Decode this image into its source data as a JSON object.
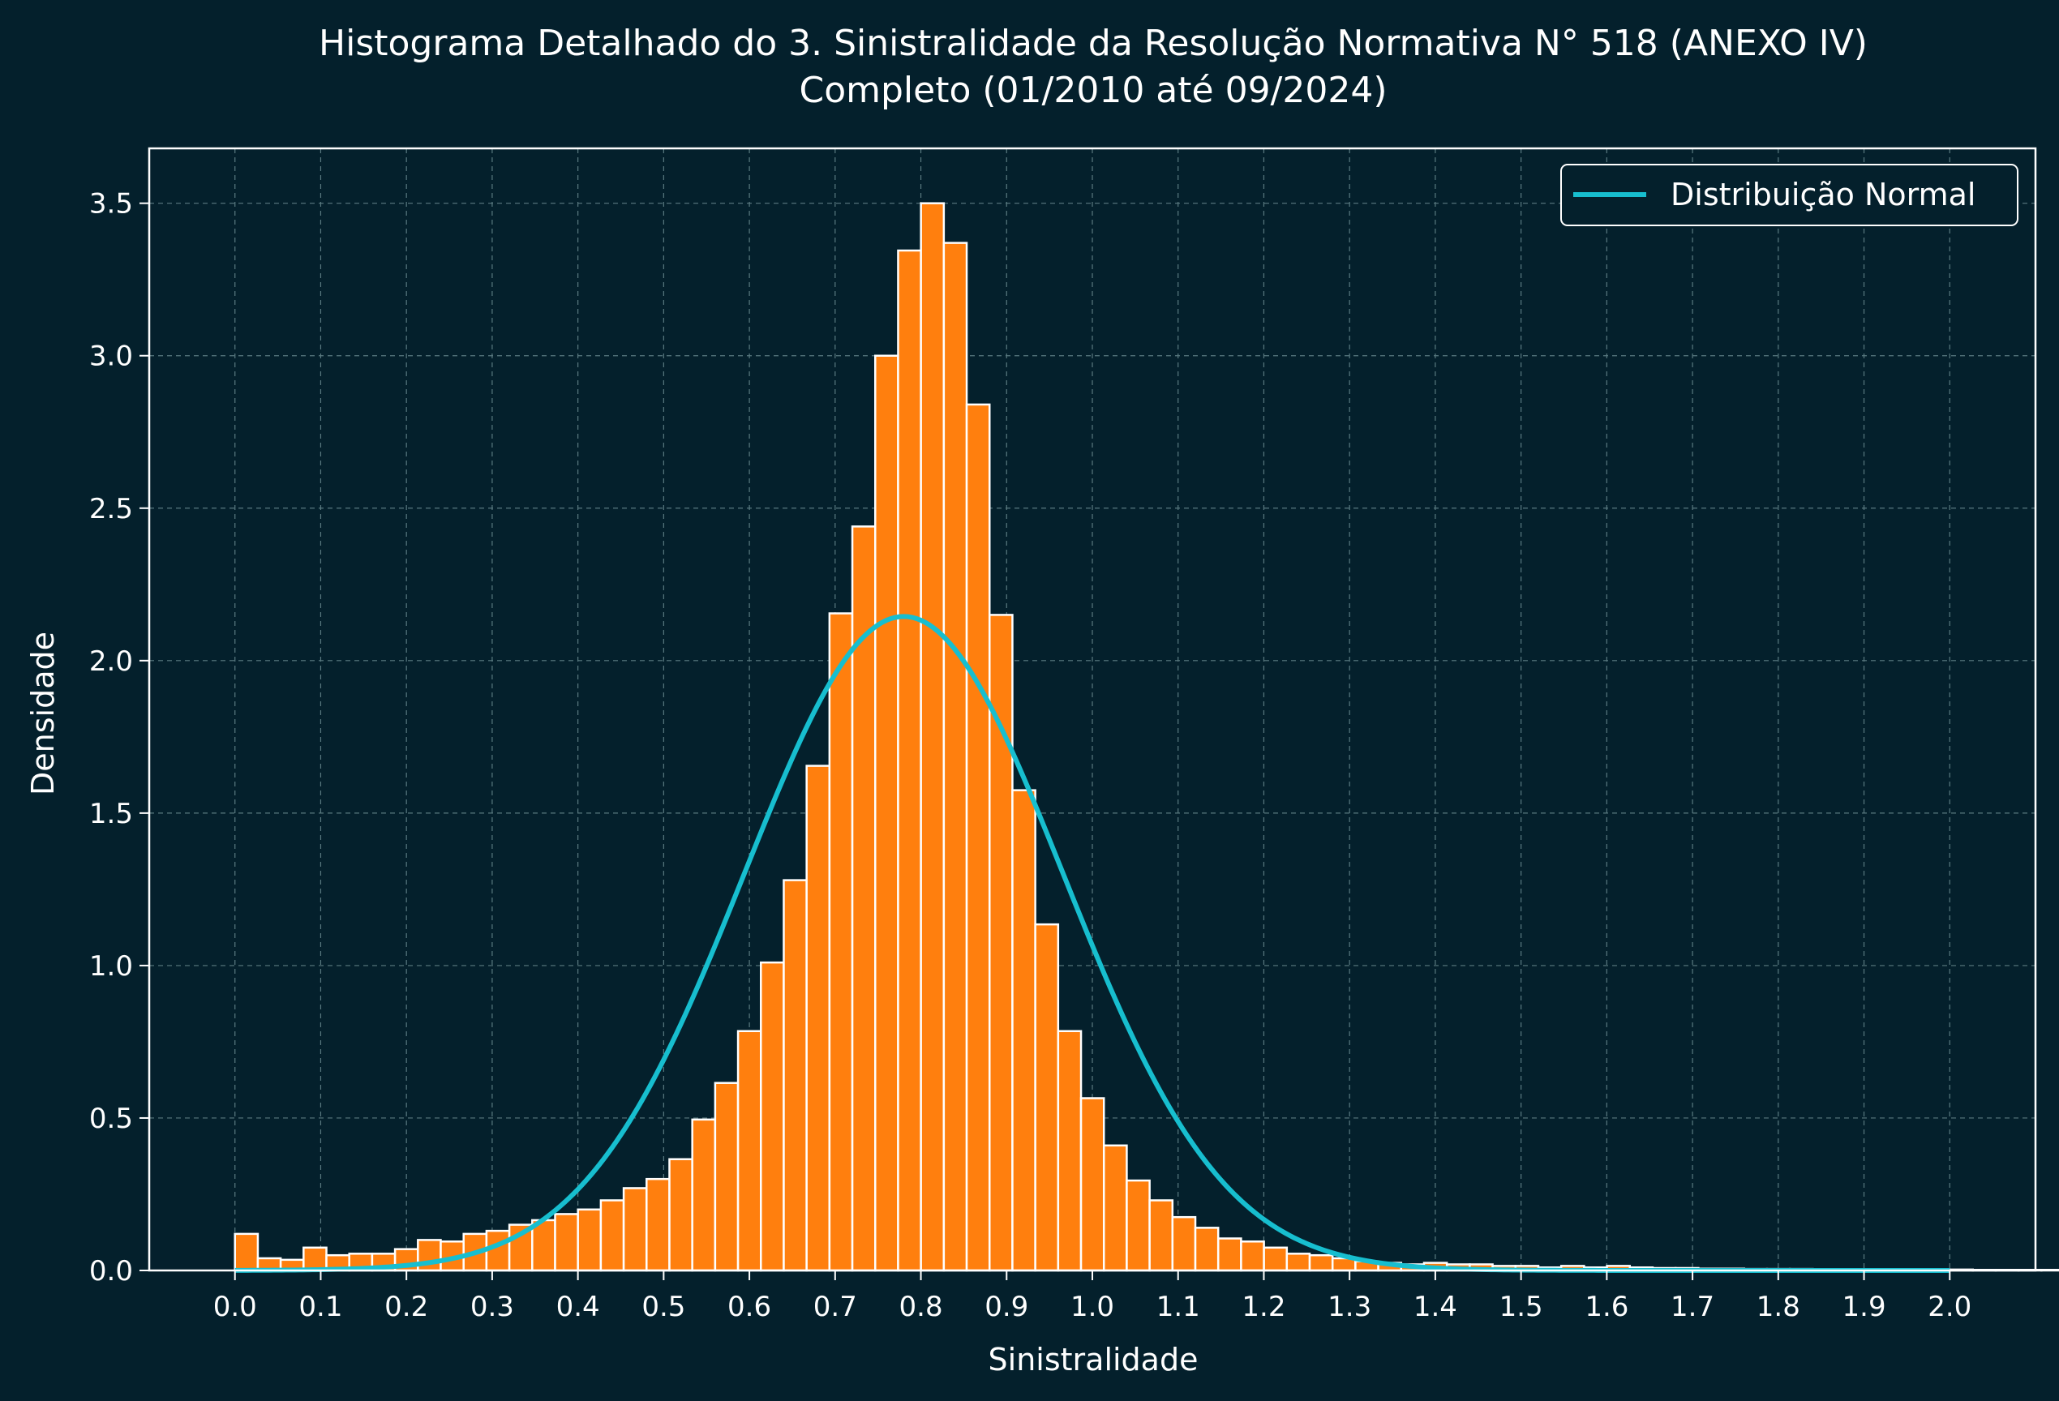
{
  "chart_data": {
    "type": "bar",
    "title": "Histograma Detalhado do 3. Sinistralidade da Resolução Normativa N° 518 (ANEXO IV)",
    "subtitle": "Completo (01/2010 até 09/2024)",
    "xlabel": "Sinistralidade",
    "ylabel": "Densidade",
    "xlim": [
      -0.1,
      2.1
    ],
    "ylim": [
      0,
      3.68
    ],
    "grid": true,
    "legend_position": "top-right",
    "x_ticks": [
      "0.0",
      "0.1",
      "0.2",
      "0.3",
      "0.4",
      "0.5",
      "0.6",
      "0.7",
      "0.8",
      "0.9",
      "1.0",
      "1.1",
      "1.2",
      "1.3",
      "1.4",
      "1.5",
      "1.6",
      "1.7",
      "1.8",
      "1.9",
      "2.0"
    ],
    "y_ticks": [
      "0.0",
      "0.5",
      "1.0",
      "1.5",
      "2.0",
      "2.5",
      "3.0",
      "3.5"
    ],
    "bin_width": 0.02667,
    "bin_start": 0.0,
    "histogram_values": [
      0.12,
      0.04,
      0.035,
      0.075,
      0.05,
      0.055,
      0.055,
      0.07,
      0.1,
      0.095,
      0.12,
      0.13,
      0.15,
      0.165,
      0.185,
      0.2,
      0.23,
      0.27,
      0.3,
      0.365,
      0.495,
      0.615,
      0.785,
      1.01,
      1.28,
      1.655,
      2.155,
      2.44,
      3.0,
      3.345,
      3.5,
      3.37,
      2.84,
      2.15,
      1.575,
      1.135,
      0.785,
      0.565,
      0.41,
      0.295,
      0.23,
      0.175,
      0.14,
      0.105,
      0.095,
      0.075,
      0.055,
      0.05,
      0.04,
      0.03,
      0.025,
      0.02,
      0.025,
      0.02,
      0.02,
      0.015,
      0.015,
      0.01,
      0.015,
      0.01,
      0.015,
      0.01,
      0.008,
      0.008,
      0.006,
      0.006,
      0.005,
      0.005,
      0.005,
      0.004,
      0.004,
      0.004,
      0.003,
      0.003,
      0.003,
      0.003,
      0.002,
      0.002,
      0.002,
      0.002
    ],
    "series": [
      {
        "name": "Distribuição Normal",
        "type": "line",
        "distribution": "normal",
        "mean": 0.78,
        "std": 0.186,
        "x_range": [
          0.0,
          2.0
        ]
      }
    ],
    "colors": {
      "background": "#04202c",
      "bars": "#ff7f0e",
      "bar_edge": "#ffffff",
      "line": "#17becf",
      "axes": "#ffffff",
      "grid": "#5a7a80",
      "text": "#ffffff"
    }
  }
}
